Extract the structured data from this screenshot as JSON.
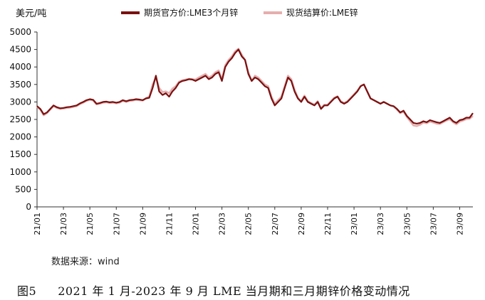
{
  "chart_data": {
    "type": "line",
    "ylabel": "美元/吨",
    "ylim": [
      0,
      5000
    ],
    "yticks": [
      0,
      500,
      1000,
      1500,
      2000,
      2500,
      3000,
      3500,
      4000,
      4500,
      5000
    ],
    "xlim": [
      0,
      33
    ],
    "xticks": [
      {
        "label": "21/01",
        "pos": 0
      },
      {
        "label": "21/03",
        "pos": 2
      },
      {
        "label": "21/05",
        "pos": 4
      },
      {
        "label": "21/07",
        "pos": 6
      },
      {
        "label": "21/09",
        "pos": 8
      },
      {
        "label": "21/11",
        "pos": 10
      },
      {
        "label": "22/01",
        "pos": 12
      },
      {
        "label": "22/03",
        "pos": 14
      },
      {
        "label": "22/05",
        "pos": 16
      },
      {
        "label": "22/07",
        "pos": 18
      },
      {
        "label": "22/09",
        "pos": 20
      },
      {
        "label": "22/11",
        "pos": 22
      },
      {
        "label": "23/01",
        "pos": 24
      },
      {
        "label": "23/03",
        "pos": 26
      },
      {
        "label": "23/05",
        "pos": 28
      },
      {
        "label": "23/07",
        "pos": 30
      },
      {
        "label": "23/09",
        "pos": 32
      }
    ],
    "grid": false,
    "legend_position": "top",
    "x": [
      0,
      0.25,
      0.5,
      0.75,
      1,
      1.25,
      1.5,
      1.75,
      2,
      2.25,
      2.5,
      2.75,
      3,
      3.25,
      3.5,
      3.75,
      4,
      4.25,
      4.5,
      4.75,
      5,
      5.25,
      5.5,
      5.75,
      6,
      6.25,
      6.5,
      6.75,
      7,
      7.25,
      7.5,
      7.75,
      8,
      8.25,
      8.5,
      8.75,
      9,
      9.25,
      9.5,
      9.75,
      10,
      10.25,
      10.5,
      10.75,
      11,
      11.25,
      11.5,
      11.75,
      12,
      12.25,
      12.5,
      12.75,
      13,
      13.25,
      13.5,
      13.75,
      14,
      14.25,
      14.5,
      14.75,
      15,
      15.25,
      15.5,
      15.75,
      16,
      16.25,
      16.5,
      16.75,
      17,
      17.25,
      17.5,
      17.75,
      18,
      18.25,
      18.5,
      18.75,
      19,
      19.25,
      19.5,
      19.75,
      20,
      20.25,
      20.5,
      20.75,
      21,
      21.25,
      21.5,
      21.75,
      22,
      22.25,
      22.5,
      22.75,
      23,
      23.25,
      23.5,
      23.75,
      24,
      24.25,
      24.5,
      24.75,
      25,
      25.25,
      25.5,
      25.75,
      26,
      26.25,
      26.5,
      26.75,
      27,
      27.25,
      27.5,
      27.75,
      28,
      28.25,
      28.5,
      28.75,
      29,
      29.25,
      29.5,
      29.75,
      30,
      30.25,
      30.5,
      30.75,
      31,
      31.25,
      31.5,
      31.75,
      32,
      32.25,
      32.5,
      32.75,
      33
    ],
    "series": [
      {
        "name": "期货官方价:LME3个月锌",
        "color": "#7a1010",
        "values": [
          2880,
          2800,
          2650,
          2700,
          2800,
          2900,
          2850,
          2820,
          2830,
          2850,
          2860,
          2880,
          2900,
          2960,
          3000,
          3050,
          3080,
          3060,
          2950,
          2970,
          3000,
          3010,
          2990,
          3000,
          2980,
          3000,
          3050,
          3020,
          3050,
          3060,
          3080,
          3070,
          3050,
          3100,
          3120,
          3400,
          3750,
          3300,
          3200,
          3250,
          3150,
          3300,
          3400,
          3550,
          3600,
          3620,
          3650,
          3640,
          3600,
          3650,
          3700,
          3750,
          3650,
          3700,
          3800,
          3850,
          3600,
          4000,
          4150,
          4250,
          4400,
          4500,
          4300,
          4200,
          3800,
          3600,
          3700,
          3650,
          3550,
          3450,
          3400,
          3100,
          2900,
          3000,
          3100,
          3400,
          3700,
          3600,
          3300,
          3100,
          3000,
          3150,
          3000,
          2950,
          2900,
          3000,
          2800,
          2900,
          2900,
          3000,
          3100,
          3150,
          3000,
          2950,
          3000,
          3100,
          3200,
          3300,
          3450,
          3500,
          3300,
          3100,
          3050,
          3000,
          2950,
          3000,
          2950,
          2900,
          2880,
          2800,
          2700,
          2750,
          2600,
          2500,
          2400,
          2380,
          2400,
          2450,
          2420,
          2480,
          2450,
          2420,
          2400,
          2450,
          2500,
          2550,
          2450,
          2400,
          2480,
          2500,
          2550,
          2550,
          2680
        ]
      },
      {
        "name": "现货结算价:LME锌",
        "color": "#e6aeae",
        "values": [
          2860,
          2780,
          2620,
          2680,
          2780,
          2880,
          2830,
          2800,
          2810,
          2830,
          2840,
          2860,
          2880,
          2940,
          2980,
          3030,
          3060,
          3040,
          2930,
          2950,
          2980,
          2990,
          2970,
          2980,
          2960,
          2980,
          3030,
          3000,
          3030,
          3040,
          3060,
          3050,
          3040,
          3110,
          3150,
          3500,
          3700,
          3400,
          3280,
          3300,
          3250,
          3380,
          3450,
          3580,
          3620,
          3640,
          3660,
          3650,
          3640,
          3700,
          3750,
          3800,
          3700,
          3750,
          3850,
          3900,
          3650,
          4050,
          4200,
          4300,
          4450,
          4520,
          4350,
          4200,
          3850,
          3600,
          3750,
          3700,
          3600,
          3500,
          3450,
          3150,
          2950,
          3050,
          3150,
          3450,
          3750,
          3650,
          3350,
          3120,
          3020,
          3180,
          3020,
          2970,
          2920,
          3020,
          2820,
          2920,
          2920,
          3020,
          3120,
          3160,
          3020,
          2970,
          3020,
          3120,
          3220,
          3320,
          3460,
          3500,
          3300,
          3100,
          3050,
          3000,
          2950,
          3000,
          2950,
          2900,
          2870,
          2780,
          2680,
          2720,
          2570,
          2450,
          2330,
          2310,
          2350,
          2410,
          2390,
          2440,
          2410,
          2380,
          2370,
          2420,
          2470,
          2510,
          2420,
          2360,
          2440,
          2470,
          2510,
          2520,
          2600
        ]
      }
    ]
  },
  "source_text": "数据来源：wind",
  "caption": {
    "figure_no": "图5",
    "title": "2021 年 1 月-2023 年 9 月 LME 当月期和三月期锌价格变动情况"
  }
}
